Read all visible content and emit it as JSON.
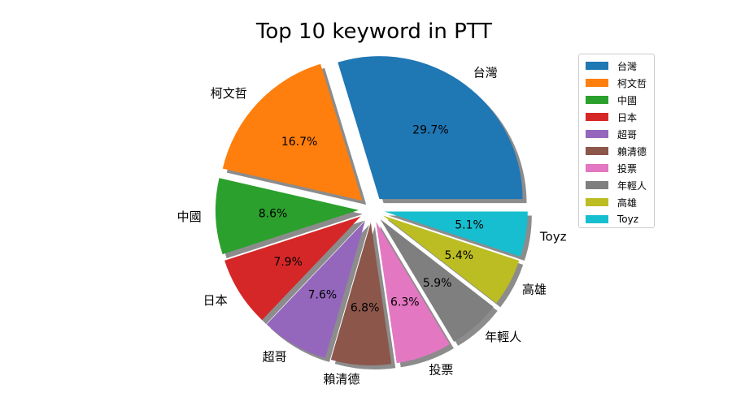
{
  "chart_data": {
    "type": "pie",
    "title": "Top 10 keyword in PTT",
    "categories": [
      "台灣",
      "柯文哲",
      "中國",
      "日本",
      "超哥",
      "賴清德",
      "投票",
      "年輕人",
      "高雄",
      "Toyz"
    ],
    "values": [
      29.7,
      16.7,
      8.6,
      7.9,
      7.6,
      6.8,
      6.3,
      5.9,
      5.4,
      5.1
    ],
    "value_labels": [
      "29.7%",
      "16.7%",
      "8.6%",
      "7.9%",
      "7.6%",
      "6.8%",
      "6.3%",
      "5.9%",
      "5.4%",
      "5.1%"
    ],
    "colors": [
      "#1f77b4",
      "#ff7f0e",
      "#2ca02c",
      "#d62728",
      "#9467bd",
      "#8c564b",
      "#e377c2",
      "#7f7f7f",
      "#bcbd22",
      "#17becf"
    ],
    "start_angle_deg": 0,
    "direction": "counterclockwise",
    "shadow": true,
    "exploded": true,
    "legend_position": "upper-right"
  }
}
